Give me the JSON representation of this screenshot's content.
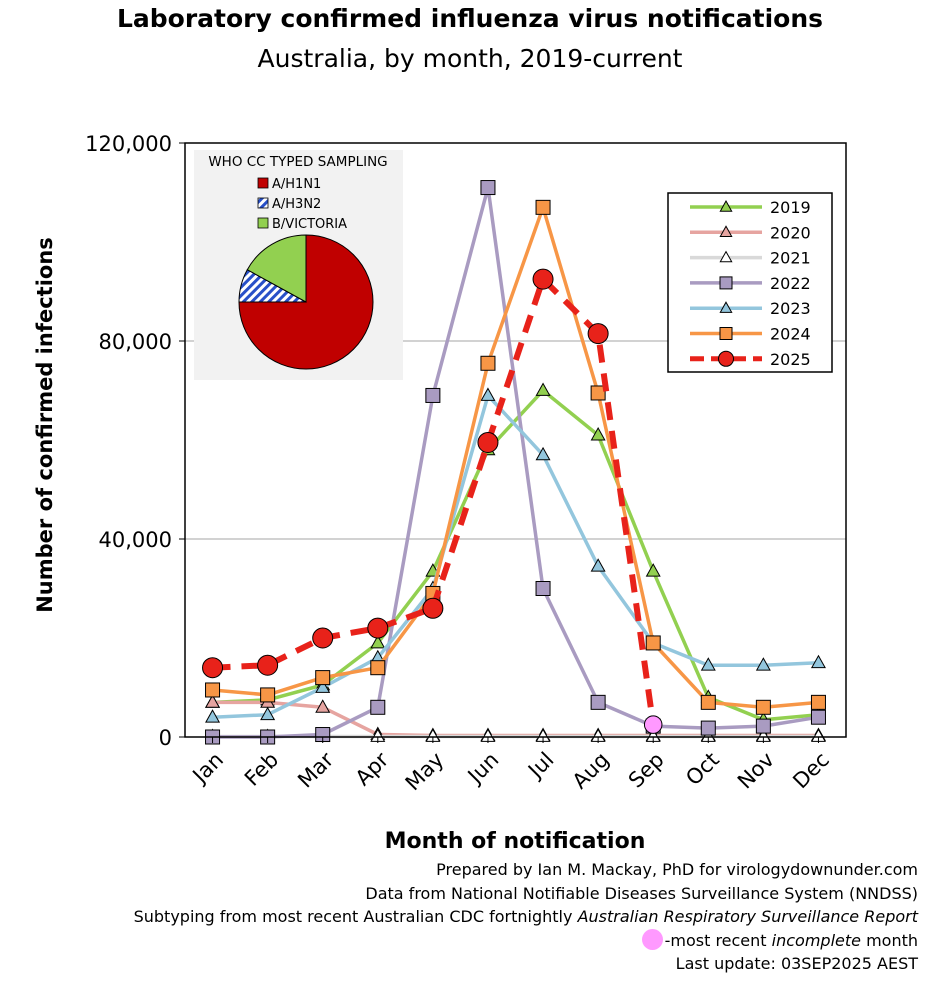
{
  "chart_data": {
    "type": "line",
    "title": "Laboratory confirmed influenza virus notifications",
    "subtitle": "Australia, by month, 2019-current",
    "xlabel": "Month of notification",
    "ylabel": "Number of confirmed infections",
    "categories": [
      "Jan",
      "Feb",
      "Mar",
      "Apr",
      "May",
      "Jun",
      "Jul",
      "Aug",
      "Sep",
      "Oct",
      "Nov",
      "Dec"
    ],
    "ylim": [
      0,
      120000
    ],
    "yticks": [
      0,
      40000,
      80000,
      120000
    ],
    "ytick_labels": [
      "0",
      "40,000",
      "80,000",
      "120,000"
    ],
    "grid": "horizontal",
    "legend_position": "top-right",
    "series": [
      {
        "name": "2019",
        "color": "#92D050",
        "marker": "triangle",
        "values": [
          7000,
          7500,
          10500,
          19000,
          33500,
          58000,
          70000,
          61000,
          33500,
          8000,
          3500,
          4500
        ]
      },
      {
        "name": "2020",
        "color": "#E6A4A0",
        "marker": "triangle",
        "values": [
          7000,
          7000,
          6000,
          500,
          300,
          300,
          300,
          300,
          300,
          300,
          300,
          300
        ]
      },
      {
        "name": "2021",
        "color": "#D9D9D9",
        "marker": "triangle",
        "values": [
          100,
          100,
          100,
          100,
          100,
          100,
          100,
          100,
          100,
          100,
          100,
          100
        ]
      },
      {
        "name": "2022",
        "color": "#A99BC1",
        "marker": "square",
        "values": [
          0,
          0,
          500,
          6000,
          69000,
          111000,
          30000,
          7000,
          2200,
          1800,
          2200,
          4000
        ]
      },
      {
        "name": "2023",
        "color": "#93C6DD",
        "marker": "triangle",
        "values": [
          4000,
          4500,
          10000,
          16000,
          30000,
          69000,
          57000,
          34500,
          19000,
          14500,
          14500,
          15000
        ]
      },
      {
        "name": "2024",
        "color": "#F79646",
        "marker": "square",
        "values": [
          9500,
          8500,
          12000,
          14000,
          29000,
          75500,
          107000,
          69500,
          19000,
          7000,
          6000,
          7000
        ]
      },
      {
        "name": "2025",
        "color": "#E8221A",
        "marker": "circle",
        "dashed": true,
        "values": [
          14000,
          14500,
          20000,
          22000,
          26000,
          59500,
          92500,
          81500,
          2500,
          null,
          null,
          null
        ]
      }
    ],
    "incomplete_point": {
      "series": "2025",
      "category": "Sep",
      "value": 2500,
      "color": "#FF99FF"
    },
    "inset_pie": {
      "title": "WHO CC TYPED SAMPLING",
      "slices": [
        {
          "label": "A/H1N1",
          "value": 75,
          "color": "#C00000"
        },
        {
          "label": "A/H3N2",
          "value": 8,
          "color": "#2850C8",
          "pattern": "hatch"
        },
        {
          "label": "B/VICTORIA",
          "value": 17,
          "color": "#92D050"
        }
      ]
    }
  },
  "footer": {
    "line1": "Prepared by Ian M. Mackay, PhD for virologydownunder.com",
    "line2": "Data from National Notifiable Diseases Surveillance System (NNDSS)",
    "line3_prefix": "Subtyping from most recent Australian CDC fortnightly ",
    "line3_italic": "Australian Respiratory Surveillance Report",
    "line4_prefix": "-most recent ",
    "line4_italic": "incomplete",
    "line4_suffix": " month",
    "line5": "Last update: 03SEP2025 AEST"
  }
}
